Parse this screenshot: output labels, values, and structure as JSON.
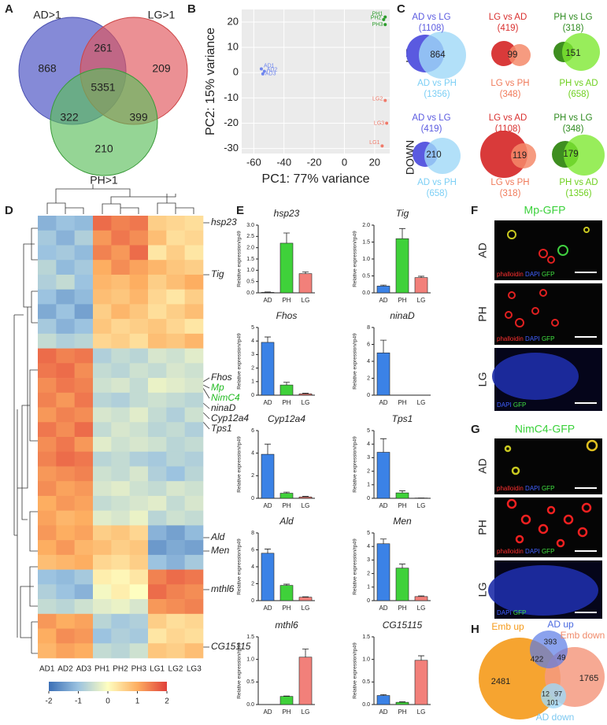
{
  "panel_labels": [
    "A",
    "B",
    "C",
    "D",
    "E",
    "F",
    "G",
    "H"
  ],
  "venn_a": {
    "sets": [
      "AD>1",
      "LG>1",
      "PH>1"
    ],
    "regions": [
      868,
      261,
      209,
      5351,
      322,
      399,
      210
    ]
  },
  "venn_c": {
    "rows": [
      "UP",
      "DOWN"
    ],
    "panels": [
      {
        "top": [
          "AD vs LG",
          "(1108)"
        ],
        "bottom": [
          "AD vs PH",
          "(1356)"
        ],
        "overlap": 864
      },
      {
        "top": [
          "LG vs AD",
          "(419)"
        ],
        "bottom": [
          "LG vs PH",
          "(348)"
        ],
        "overlap": 99
      },
      {
        "top": [
          "PH vs LG",
          "(318)"
        ],
        "bottom": [
          "PH vs AD",
          "(658)"
        ],
        "overlap": 151
      },
      {
        "top": [
          "AD vs LG",
          "(419)"
        ],
        "bottom": [
          "AD vs PH",
          "(658)"
        ],
        "overlap": 210
      },
      {
        "top": [
          "LG vs AD",
          "(1108)"
        ],
        "bottom": [
          "LG vs PH",
          "(318)"
        ],
        "overlap": 119
      },
      {
        "top": [
          "PH vs LG",
          "(348)"
        ],
        "bottom": [
          "PH vs AD",
          "(1356)"
        ],
        "overlap": 179
      }
    ]
  },
  "chart_data": [
    {
      "type": "scatter",
      "xlabel": "PC1: 77% variance",
      "ylabel": "PC2: 15% variance",
      "xlim": [
        -68,
        30
      ],
      "ylim": [
        -32,
        25
      ],
      "xticks": [
        -60,
        -40,
        -20,
        0,
        20
      ],
      "yticks": [
        -30,
        -20,
        -10,
        0,
        10,
        20
      ],
      "grid": true,
      "series": [
        {
          "color": "#6f86ee",
          "labels": [
            "AD1",
            "AD2",
            "AD3"
          ],
          "x": [
            -55,
            -53,
            -54
          ],
          "values": [
            1.5,
            0.5,
            -0.5
          ]
        },
        {
          "color": "#2e9e2e",
          "labels": [
            "PH1",
            "PH2",
            "PH3"
          ],
          "x": [
            27,
            26,
            27
          ],
          "values": [
            22,
            21,
            19
          ]
        },
        {
          "color": "#f07a6a",
          "labels": [
            "LG1",
            "LG2",
            "LG3"
          ],
          "x": [
            25,
            27,
            28
          ],
          "values": [
            -29,
            -11,
            -20
          ]
        }
      ]
    },
    {
      "type": "heatmap",
      "columns": [
        "AD1",
        "AD2",
        "AD3",
        "PH1",
        "PH2",
        "PH3",
        "LG1",
        "LG2",
        "LG3"
      ],
      "clim": [
        -2,
        2
      ],
      "colorbar_ticks": [
        -2,
        -1,
        0,
        1,
        2
      ],
      "colormap": [
        "#3b6fb6",
        "#9cc3e0",
        "#fefec0",
        "#fdae61",
        "#e0403a"
      ],
      "rows": [
        [
          -1.2,
          -1.0,
          -1.1,
          1.6,
          1.4,
          1.5,
          0.6,
          0.5,
          0.4
        ],
        [
          -0.9,
          -1.2,
          -0.8,
          1.2,
          1.5,
          1.3,
          0.8,
          0.4,
          0.5
        ],
        [
          -1.0,
          -0.9,
          -1.1,
          1.4,
          1.2,
          1.6,
          0.3,
          0.6,
          0.3
        ],
        [
          -0.7,
          -1.1,
          -0.9,
          1.0,
          1.3,
          1.1,
          0.9,
          0.7,
          0.6
        ],
        [
          -0.8,
          -0.6,
          -1.0,
          0.9,
          0.8,
          1.0,
          0.6,
          0.8,
          1.0
        ],
        [
          -1.0,
          -1.3,
          -1.1,
          0.8,
          0.7,
          0.9,
          0.5,
          0.3,
          0.6
        ],
        [
          -1.3,
          -1.0,
          -1.4,
          0.6,
          0.9,
          0.7,
          0.4,
          0.6,
          0.8
        ],
        [
          -0.9,
          -1.2,
          -1.0,
          0.7,
          0.5,
          0.6,
          0.7,
          0.5,
          0.3
        ],
        [
          -0.6,
          -0.8,
          -0.7,
          0.5,
          0.6,
          0.4,
          0.8,
          0.7,
          0.9
        ],
        [
          1.6,
          1.4,
          1.5,
          -0.8,
          -0.6,
          -0.7,
          -0.4,
          -0.5,
          -0.3
        ],
        [
          1.5,
          1.6,
          1.3,
          -0.6,
          -0.7,
          -0.5,
          -0.6,
          -0.4,
          -0.5
        ],
        [
          1.3,
          1.5,
          1.4,
          -0.5,
          -0.4,
          -0.6,
          -0.2,
          -0.3,
          -0.4
        ],
        [
          1.4,
          1.2,
          1.5,
          -0.7,
          -0.8,
          -0.6,
          -0.5,
          -0.6,
          -0.7
        ],
        [
          1.2,
          1.4,
          1.3,
          -0.4,
          -0.5,
          -0.3,
          -0.6,
          -0.8,
          -0.5
        ],
        [
          1.5,
          1.3,
          1.6,
          -0.6,
          -0.4,
          -0.5,
          -0.7,
          -0.6,
          -0.8
        ],
        [
          1.3,
          1.5,
          1.2,
          -0.3,
          -0.5,
          -0.4,
          -0.5,
          -0.7,
          -0.6
        ],
        [
          1.4,
          1.6,
          1.5,
          -0.7,
          -0.6,
          -0.8,
          -0.9,
          -0.7,
          -0.8
        ],
        [
          1.2,
          1.3,
          1.4,
          -0.5,
          -0.6,
          -0.4,
          -0.8,
          -1.0,
          -0.7
        ],
        [
          1.3,
          1.1,
          1.2,
          -0.4,
          -0.3,
          -0.5,
          -0.6,
          -0.4,
          -0.5
        ],
        [
          1.0,
          1.2,
          1.1,
          -0.6,
          -0.5,
          -0.4,
          -0.3,
          -0.6,
          -0.4
        ],
        [
          1.1,
          0.9,
          1.0,
          -0.3,
          -0.4,
          -0.2,
          -0.7,
          -0.5,
          -0.6
        ],
        [
          1.2,
          1.0,
          1.1,
          0.6,
          0.7,
          0.5,
          -1.2,
          -1.4,
          -1.1
        ],
        [
          1.0,
          1.2,
          0.9,
          0.8,
          0.6,
          0.7,
          -1.5,
          -1.3,
          -1.4
        ],
        [
          0.8,
          0.9,
          1.0,
          0.5,
          0.4,
          0.6,
          -1.0,
          -1.2,
          -0.9
        ],
        [
          -1.0,
          -1.1,
          -0.9,
          0.2,
          0.1,
          0.3,
          1.4,
          1.6,
          1.5
        ],
        [
          -0.8,
          -1.0,
          -1.2,
          -0.1,
          0.2,
          0.0,
          1.6,
          1.4,
          1.3
        ],
        [
          -0.6,
          -0.7,
          -0.5,
          -0.3,
          -0.2,
          -0.4,
          1.2,
          1.3,
          1.4
        ],
        [
          1.2,
          1.0,
          1.1,
          -0.7,
          -0.9,
          -0.8,
          0.6,
          0.4,
          0.5
        ],
        [
          1.0,
          1.3,
          1.2,
          -1.0,
          -0.8,
          -0.9,
          0.3,
          0.5,
          0.4
        ],
        [
          0.9,
          1.1,
          1.0,
          -0.6,
          -0.7,
          -0.5,
          0.7,
          0.6,
          0.8
        ]
      ],
      "gene_labels": [
        "hsp23",
        "Tig",
        "Fhos",
        "Mp",
        "NimC4",
        "ninaD",
        "Cyp12a4",
        "Tps1",
        "Ald",
        "Men",
        "mthl6",
        "CG15115"
      ]
    },
    {
      "type": "bar",
      "title": "hsp23",
      "ylabel": "Relative expression/rp49",
      "categories": [
        "AD",
        "PH",
        "LG"
      ],
      "values": [
        0.02,
        2.2,
        0.85
      ],
      "errors": [
        0.02,
        0.45,
        0.08
      ],
      "colors": [
        "#3b82e6",
        "#3fd13a",
        "#f2807a"
      ],
      "ylim": [
        0,
        3
      ],
      "yticks": [
        {
          "value": 0,
          "label": "0.0"
        },
        {
          "value": 0.5,
          "label": "0.5"
        },
        {
          "value": 1,
          "label": "1.0"
        },
        {
          "value": 1.5,
          "label": "1.5"
        },
        {
          "value": 2,
          "label": "2.0"
        },
        {
          "value": 2.5,
          "label": "2.5"
        },
        {
          "value": 3,
          "label": "3.0"
        }
      ]
    },
    {
      "type": "bar",
      "title": "Tig",
      "ylabel": "Relative expression/rp49",
      "categories": [
        "AD",
        "PH",
        "LG"
      ],
      "values": [
        0.2,
        1.6,
        0.45
      ],
      "errors": [
        0.03,
        0.3,
        0.04
      ],
      "colors": [
        "#3b82e6",
        "#3fd13a",
        "#f2807a"
      ],
      "ylim": [
        0,
        2
      ],
      "yticks": [
        {
          "value": 0,
          "label": "0.0"
        },
        {
          "value": 0.5,
          "label": "0.5"
        },
        {
          "value": 1,
          "label": "1.0"
        },
        {
          "value": 1.5,
          "label": "1.5"
        },
        {
          "value": 2,
          "label": "2.0"
        }
      ]
    },
    {
      "type": "bar",
      "title": "Fhos",
      "ylabel": "Relative expression/rp49",
      "categories": [
        "AD",
        "PH",
        "LG"
      ],
      "values": [
        3.9,
        0.75,
        0.1
      ],
      "errors": [
        0.4,
        0.2,
        0.05
      ],
      "colors": [
        "#3b82e6",
        "#3fd13a",
        "#f2807a"
      ],
      "ylim": [
        0,
        5
      ],
      "yticks": [
        0,
        1,
        2,
        3,
        4,
        5
      ]
    },
    {
      "type": "bar",
      "title": "ninaD",
      "ylabel": "Relative expression/rp49",
      "categories": [
        "AD",
        "PH",
        "LG"
      ],
      "values": [
        5.0,
        0,
        0
      ],
      "errors": [
        1.5,
        0,
        0
      ],
      "colors": [
        "#3b82e6",
        "#3fd13a",
        "#f2807a"
      ],
      "ylim": [
        0,
        8
      ],
      "yticks": [
        0,
        2,
        4,
        6,
        8
      ]
    },
    {
      "type": "bar",
      "title": "Cyp12a4",
      "ylabel": "Relative expression/rp49",
      "categories": [
        "AD",
        "PH",
        "LG"
      ],
      "values": [
        3.9,
        0.45,
        0.12
      ],
      "errors": [
        0.9,
        0.1,
        0.05
      ],
      "colors": [
        "#3b82e6",
        "#3fd13a",
        "#f2807a"
      ],
      "ylim": [
        0,
        6
      ],
      "yticks": [
        0,
        2,
        4,
        6
      ]
    },
    {
      "type": "bar",
      "title": "Tps1",
      "ylabel": "Relative expression/rp49",
      "categories": [
        "AD",
        "PH",
        "LG"
      ],
      "values": [
        3.4,
        0.4,
        0.02
      ],
      "errors": [
        1.0,
        0.15,
        0
      ],
      "colors": [
        "#3b82e6",
        "#3fd13a",
        "#f2807a"
      ],
      "ylim": [
        0,
        5
      ],
      "yticks": [
        0,
        1,
        2,
        3,
        4,
        5
      ]
    },
    {
      "type": "bar",
      "title": "Ald",
      "ylabel": "Relative expression/rp49",
      "categories": [
        "AD",
        "PH",
        "LG"
      ],
      "values": [
        5.6,
        1.8,
        0.4
      ],
      "errors": [
        0.5,
        0.15,
        0.05
      ],
      "colors": [
        "#3b82e6",
        "#3fd13a",
        "#f2807a"
      ],
      "ylim": [
        0,
        8
      ],
      "yticks": [
        0,
        2,
        4,
        6,
        8
      ]
    },
    {
      "type": "bar",
      "title": "Men",
      "ylabel": "Relative expression/rp49",
      "categories": [
        "AD",
        "PH",
        "LG"
      ],
      "values": [
        4.2,
        2.4,
        0.3
      ],
      "errors": [
        0.35,
        0.3,
        0.05
      ],
      "colors": [
        "#3b82e6",
        "#3fd13a",
        "#f2807a"
      ],
      "ylim": [
        0,
        5
      ],
      "yticks": [
        0,
        1,
        2,
        3,
        4,
        5
      ]
    },
    {
      "type": "bar",
      "title": "mthl6",
      "ylabel": "Relative expression/rp49",
      "categories": [
        "AD",
        "PH",
        "LG"
      ],
      "values": [
        0,
        0.18,
        1.05
      ],
      "errors": [
        0,
        0.01,
        0.18
      ],
      "colors": [
        "#3b82e6",
        "#3fd13a",
        "#f2807a"
      ],
      "ylim": [
        0,
        1.5
      ],
      "yticks": [
        {
          "value": 0,
          "label": "0.0"
        },
        {
          "value": 0.5,
          "label": "0.5"
        },
        {
          "value": 1,
          "label": "1.0"
        },
        {
          "value": 1.5,
          "label": "1.5"
        }
      ]
    },
    {
      "type": "bar",
      "title": "CG15115",
      "ylabel": "Relative expression/rp49",
      "categories": [
        "AD",
        "PH",
        "LG"
      ],
      "values": [
        0.2,
        0.05,
        0.98
      ],
      "errors": [
        0.02,
        0.01,
        0.1
      ],
      "colors": [
        "#3b82e6",
        "#3fd13a",
        "#f2807a"
      ],
      "ylim": [
        0,
        1.5
      ],
      "yticks": [
        {
          "value": 0,
          "label": "0.0"
        },
        {
          "value": 0.5,
          "label": "0.5"
        },
        {
          "value": 1,
          "label": "1.0"
        },
        {
          "value": 1.5,
          "label": "1.5"
        }
      ]
    }
  ],
  "micrographs": [
    {
      "title": "Mp-GFP",
      "rows": [
        {
          "label": "AD",
          "stains": [
            "phalloidin",
            "DAPI",
            "GFP"
          ]
        },
        {
          "label": "PH",
          "stains": [
            "phalloidin",
            "DAPI",
            "GFP"
          ]
        },
        {
          "label": "LG",
          "stains": [
            "DAPI",
            "GFP"
          ]
        }
      ]
    },
    {
      "title": "NimC4-GFP",
      "rows": [
        {
          "label": "AD",
          "stains": [
            "phalloidin",
            "DAPI",
            "GFP"
          ]
        },
        {
          "label": "PH",
          "stains": [
            "phalloidin",
            "DAPI",
            "GFP"
          ]
        },
        {
          "label": "LG",
          "stains": [
            "DAPI",
            "GFP"
          ]
        }
      ]
    }
  ],
  "venn_h": {
    "sets": [
      "Emb up",
      "AD up",
      "Emb down",
      "AD down"
    ],
    "regions": [
      2481,
      393,
      422,
      49,
      1765,
      12,
      97,
      101
    ]
  }
}
